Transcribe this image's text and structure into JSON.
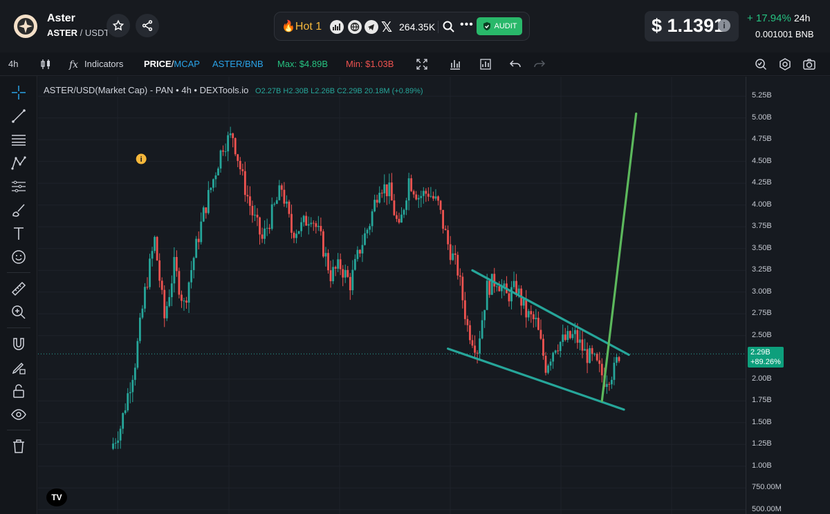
{
  "header": {
    "token_name": "Aster",
    "base_symbol": "ASTER",
    "quote_separator": " / ",
    "quote_symbol": "USDT",
    "hot_label": "Hot 1",
    "followers": "264.35K",
    "dots": "•••",
    "audit_label": "AUDIT",
    "price": "$ 1.1391",
    "info": "i",
    "change": "+ 17.94%",
    "change_period": "24h",
    "bnb_price": "0.001001 BNB",
    "colors": {
      "up": "#26c281",
      "audit_bg": "#29b86a",
      "hot": "#f5b73b"
    }
  },
  "toolbar": {
    "timeframe": "4h",
    "indicators_label": "Indicators",
    "price_label": "PRICE",
    "mcap_label": "MCAP",
    "pair_toggle": "ASTER/BNB",
    "max_label": "Max: $4.89B",
    "min_label": "Min: $1.03B",
    "icons": [
      "candles-icon",
      "fx-icon",
      "fullscreen-icon",
      "bar-chart-icon",
      "chart-alt-icon",
      "undo-icon",
      "redo-icon",
      "zoom-icon",
      "settings-icon",
      "camera-icon"
    ]
  },
  "left_tools": [
    "crosshair-icon",
    "trendline-icon",
    "fib-icon",
    "pattern-icon",
    "projection-icon",
    "brush-icon",
    "text-icon",
    "emoji-icon",
    "ruler-icon",
    "zoom-in-icon",
    "magnet-icon",
    "lock-draw-icon",
    "unlock-icon",
    "eye-icon",
    "trash-icon"
  ],
  "chart": {
    "legend_title": "ASTER/USD(Market Cap) - PAN • 4h • DEXTools.io",
    "ohlc": {
      "o_label": "O",
      "o": "2.27B",
      "h_label": "H",
      "h": "2.30B",
      "l_label": "L",
      "l": "2.26B",
      "c_label": "C",
      "c": "2.29B",
      "change": "20.18M (+0.89%)"
    },
    "tv_logo": "TV",
    "marker": "i",
    "colors": {
      "up": "#26a69a",
      "down": "#ef5350",
      "channel": "#26a69a",
      "projection": "#5cb85c"
    }
  },
  "yaxis": {
    "labels": [
      "5.25B",
      "5.00B",
      "4.75B",
      "4.50B",
      "4.25B",
      "4.00B",
      "3.75B",
      "3.50B",
      "3.25B",
      "3.00B",
      "2.75B",
      "2.50B",
      "2.00B",
      "1.75B",
      "1.50B",
      "1.25B",
      "1.00B",
      "750.00M",
      "500.00M"
    ],
    "current_value": "2.29B",
    "current_change": "+89.26%"
  },
  "chart_data": {
    "type": "candlestick",
    "title": "ASTER/USD(Market Cap) - PAN • 4h • DEXTools.io",
    "ylim": [
      0.5,
      5.35
    ],
    "y_unit": "B",
    "max": 4.89,
    "min": 1.03,
    "last": 2.29,
    "path": [
      [
        0,
        1.2
      ],
      [
        4,
        1.45
      ],
      [
        10,
        2.2
      ],
      [
        14,
        3.0
      ],
      [
        18,
        3.6
      ],
      [
        22,
        2.7
      ],
      [
        26,
        3.3
      ],
      [
        30,
        2.85
      ],
      [
        34,
        3.4
      ],
      [
        38,
        3.9
      ],
      [
        42,
        4.3
      ],
      [
        46,
        4.7
      ],
      [
        50,
        4.8
      ],
      [
        54,
        4.3
      ],
      [
        58,
        3.9
      ],
      [
        62,
        3.6
      ],
      [
        66,
        3.9
      ],
      [
        70,
        4.2
      ],
      [
        74,
        3.7
      ],
      [
        78,
        3.75
      ],
      [
        82,
        3.9
      ],
      [
        86,
        3.6
      ],
      [
        90,
        3.2
      ],
      [
        94,
        3.3
      ],
      [
        98,
        3.1
      ],
      [
        102,
        3.5
      ],
      [
        106,
        3.8
      ],
      [
        110,
        4.25
      ],
      [
        114,
        4.15
      ],
      [
        118,
        3.7
      ],
      [
        122,
        4.3
      ],
      [
        126,
        4.1
      ],
      [
        130,
        4.15
      ],
      [
        134,
        4.0
      ],
      [
        138,
        3.55
      ],
      [
        142,
        3.25
      ],
      [
        146,
        2.6
      ],
      [
        150,
        2.35
      ],
      [
        154,
        3.05
      ],
      [
        158,
        3.15
      ],
      [
        162,
        2.95
      ],
      [
        166,
        3.05
      ],
      [
        170,
        2.75
      ],
      [
        174,
        2.65
      ],
      [
        178,
        2.15
      ],
      [
        182,
        2.4
      ],
      [
        186,
        2.45
      ],
      [
        190,
        2.5
      ],
      [
        194,
        2.3
      ],
      [
        198,
        2.2
      ],
      [
        202,
        2.0
      ],
      [
        206,
        2.1
      ],
      [
        208,
        2.29
      ]
    ],
    "annotations": [
      {
        "type": "channel-upper",
        "from": [
          148,
          3.25
        ],
        "to": [
          212,
          2.28
        ]
      },
      {
        "type": "channel-lower",
        "from": [
          138,
          2.35
        ],
        "to": [
          210,
          1.65
        ]
      },
      {
        "type": "projection",
        "from": [
          201,
          1.75
        ],
        "to": [
          215,
          5.05
        ]
      }
    ]
  }
}
